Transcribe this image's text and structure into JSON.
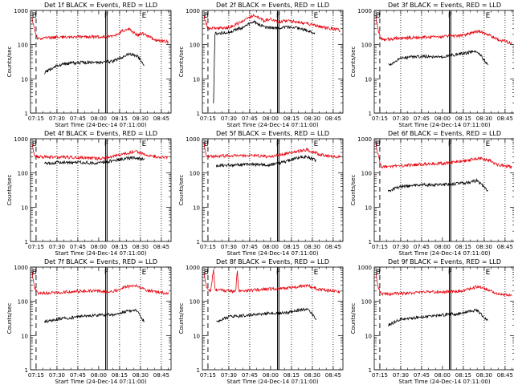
{
  "y_axis_label": "Counts/sec",
  "x_axis_label": "Start Time (24-Dec-14 07:11:00)",
  "x_ticks": [
    "07:15",
    "07:30",
    "07:45",
    "08:00",
    "08:15",
    "08:30",
    "08:45"
  ],
  "y_ticks": [
    "1",
    "10",
    "100",
    "1000"
  ],
  "markers": [
    "B",
    "F",
    "E"
  ],
  "colors": {
    "events": "#000000",
    "lld": "#e8000b"
  },
  "chart_data": [
    {
      "type": "line",
      "title": "Det 1f BLACK = Events, RED = LLD",
      "ylim": [
        1,
        1000
      ],
      "y_scale": "log",
      "x_range_minutes": [
        "07:11",
        "08:52"
      ],
      "series": [
        {
          "color": "#e8000b",
          "points": [
            [
              "07:12",
              650
            ],
            [
              "07:14",
              250
            ],
            [
              "07:16",
              150
            ],
            [
              "07:30",
              165
            ],
            [
              "07:45",
              170
            ],
            [
              "08:00",
              170
            ],
            [
              "08:10",
              175
            ],
            [
              "08:18",
              260
            ],
            [
              "08:22",
              280
            ],
            [
              "08:28",
              190
            ],
            [
              "08:32",
              210
            ],
            [
              "08:40",
              140
            ],
            [
              "08:50",
              120
            ]
          ]
        },
        {
          "color": "#000000",
          "points": [
            [
              "07:21",
              15
            ],
            [
              "07:30",
              25
            ],
            [
              "07:45",
              30
            ],
            [
              "08:00",
              30
            ],
            [
              "08:10",
              33
            ],
            [
              "08:18",
              45
            ],
            [
              "08:22",
              55
            ],
            [
              "08:28",
              45
            ],
            [
              "08:33",
              25
            ]
          ]
        }
      ]
    },
    {
      "type": "line",
      "title": "Det 2f BLACK = Events, RED = LLD",
      "ylim": [
        1,
        1000
      ],
      "y_scale": "log",
      "x_range_minutes": [
        "07:11",
        "08:52"
      ],
      "series": [
        {
          "color": "#e8000b",
          "points": [
            [
              "07:12",
              700
            ],
            [
              "07:15",
              300
            ],
            [
              "07:30",
              320
            ],
            [
              "07:40",
              480
            ],
            [
              "07:48",
              750
            ],
            [
              "07:55",
              500
            ],
            [
              "08:00",
              560
            ],
            [
              "08:05",
              450
            ],
            [
              "08:10",
              500
            ],
            [
              "08:20",
              460
            ],
            [
              "08:30",
              380
            ],
            [
              "08:40",
              310
            ],
            [
              "08:50",
              260
            ]
          ]
        },
        {
          "color": "#000000",
          "points": [
            [
              "07:19",
              2
            ],
            [
              "07:20",
              210
            ],
            [
              "07:30",
              230
            ],
            [
              "07:40",
              320
            ],
            [
              "07:48",
              480
            ],
            [
              "07:55",
              330
            ],
            [
              "08:05",
              300
            ],
            [
              "08:15",
              330
            ],
            [
              "08:25",
              270
            ],
            [
              "08:32",
              220
            ]
          ]
        }
      ]
    },
    {
      "type": "line",
      "title": "Det 3f BLACK = Events, RED = LLD",
      "ylim": [
        1,
        1000
      ],
      "y_scale": "log",
      "x_range_minutes": [
        "07:11",
        "08:52"
      ],
      "series": [
        {
          "color": "#e8000b",
          "points": [
            [
              "07:12",
              700
            ],
            [
              "07:14",
              250
            ],
            [
              "07:16",
              140
            ],
            [
              "07:30",
              155
            ],
            [
              "07:45",
              165
            ],
            [
              "08:00",
              170
            ],
            [
              "08:15",
              185
            ],
            [
              "08:25",
              250
            ],
            [
              "08:33",
              200
            ],
            [
              "08:40",
              140
            ],
            [
              "08:50",
              110
            ]
          ]
        },
        {
          "color": "#000000",
          "points": [
            [
              "07:21",
              25
            ],
            [
              "07:30",
              40
            ],
            [
              "07:45",
              45
            ],
            [
              "08:00",
              45
            ],
            [
              "08:15",
              55
            ],
            [
              "08:25",
              65
            ],
            [
              "08:33",
              25
            ]
          ]
        }
      ]
    },
    {
      "type": "line",
      "title": "Det 4f BLACK = Events, RED = LLD",
      "ylim": [
        1,
        1000
      ],
      "y_scale": "log",
      "x_range_minutes": [
        "07:11",
        "08:52"
      ],
      "series": [
        {
          "color": "#e8000b",
          "points": [
            [
              "07:12",
              700
            ],
            [
              "07:14",
              300
            ],
            [
              "07:30",
              290
            ],
            [
              "07:45",
              285
            ],
            [
              "08:00",
              260
            ],
            [
              "08:10",
              300
            ],
            [
              "08:20",
              380
            ],
            [
              "08:27",
              420
            ],
            [
              "08:35",
              330
            ],
            [
              "08:45",
              290
            ],
            [
              "08:50",
              280
            ]
          ]
        },
        {
          "color": "#000000",
          "points": [
            [
              "07:21",
              190
            ],
            [
              "07:30",
              200
            ],
            [
              "07:45",
              205
            ],
            [
              "08:00",
              195
            ],
            [
              "08:10",
              230
            ],
            [
              "08:20",
              270
            ],
            [
              "08:27",
              280
            ],
            [
              "08:33",
              240
            ]
          ]
        }
      ]
    },
    {
      "type": "line",
      "title": "Det 5f BLACK = Events, RED = LLD",
      "ylim": [
        1,
        1000
      ],
      "y_scale": "log",
      "x_range_minutes": [
        "07:11",
        "08:52"
      ],
      "series": [
        {
          "color": "#e8000b",
          "points": [
            [
              "07:12",
              800
            ],
            [
              "07:14",
              300
            ],
            [
              "07:30",
              320
            ],
            [
              "07:45",
              330
            ],
            [
              "08:00",
              300
            ],
            [
              "08:10",
              360
            ],
            [
              "08:20",
              430
            ],
            [
              "08:26",
              480
            ],
            [
              "08:35",
              350
            ],
            [
              "08:45",
              300
            ],
            [
              "08:50",
              290
            ]
          ]
        },
        {
          "color": "#000000",
          "points": [
            [
              "07:21",
              160
            ],
            [
              "07:30",
              170
            ],
            [
              "07:45",
              180
            ],
            [
              "08:00",
              170
            ],
            [
              "08:10",
              210
            ],
            [
              "08:20",
              280
            ],
            [
              "08:26",
              300
            ],
            [
              "08:33",
              230
            ]
          ]
        }
      ]
    },
    {
      "type": "line",
      "title": "Det 6f BLACK = Events, RED = LLD",
      "ylim": [
        1,
        1000
      ],
      "y_scale": "log",
      "x_range_minutes": [
        "07:11",
        "08:52"
      ],
      "series": [
        {
          "color": "#e8000b",
          "points": [
            [
              "07:12",
              800
            ],
            [
              "07:14",
              300
            ],
            [
              "07:16",
              150
            ],
            [
              "07:30",
              160
            ],
            [
              "07:45",
              180
            ],
            [
              "08:00",
              190
            ],
            [
              "08:15",
              220
            ],
            [
              "08:25",
              270
            ],
            [
              "08:33",
              240
            ],
            [
              "08:40",
              170
            ],
            [
              "08:50",
              150
            ]
          ]
        },
        {
          "color": "#000000",
          "points": [
            [
              "07:21",
              30
            ],
            [
              "07:30",
              40
            ],
            [
              "07:45",
              45
            ],
            [
              "08:00",
              45
            ],
            [
              "08:15",
              50
            ],
            [
              "08:25",
              60
            ],
            [
              "08:33",
              30
            ]
          ]
        }
      ]
    },
    {
      "type": "line",
      "title": "Det 7f BLACK = Events, RED = LLD",
      "ylim": [
        1,
        1000
      ],
      "y_scale": "log",
      "x_range_minutes": [
        "07:11",
        "08:52"
      ],
      "series": [
        {
          "color": "#e8000b",
          "points": [
            [
              "07:12",
              700
            ],
            [
              "07:14",
              250
            ],
            [
              "07:16",
              170
            ],
            [
              "07:30",
              180
            ],
            [
              "07:45",
              200
            ],
            [
              "08:00",
              200
            ],
            [
              "08:10",
              190
            ],
            [
              "08:20",
              270
            ],
            [
              "08:27",
              280
            ],
            [
              "08:35",
              210
            ],
            [
              "08:45",
              180
            ],
            [
              "08:50",
              170
            ]
          ]
        },
        {
          "color": "#000000",
          "points": [
            [
              "07:21",
              25
            ],
            [
              "07:30",
              30
            ],
            [
              "07:45",
              35
            ],
            [
              "08:00",
              40
            ],
            [
              "08:10",
              40
            ],
            [
              "08:20",
              50
            ],
            [
              "08:27",
              55
            ],
            [
              "08:33",
              25
            ]
          ]
        }
      ]
    },
    {
      "type": "line",
      "title": "Det 8f BLACK = Events, RED = LLD",
      "ylim": [
        1,
        1000
      ],
      "y_scale": "log",
      "x_range_minutes": [
        "07:11",
        "08:52"
      ],
      "series": [
        {
          "color": "#e8000b",
          "points": [
            [
              "07:12",
              700
            ],
            [
              "07:14",
              250
            ],
            [
              "07:17",
              200
            ],
            [
              "07:19",
              900
            ],
            [
              "07:20",
              220
            ],
            [
              "07:30",
              200
            ],
            [
              "07:35",
              190
            ],
            [
              "07:36",
              900
            ],
            [
              "07:37",
              200
            ],
            [
              "07:45",
              210
            ],
            [
              "08:00",
              230
            ],
            [
              "08:10",
              240
            ],
            [
              "08:20",
              270
            ],
            [
              "08:27",
              290
            ],
            [
              "08:35",
              220
            ],
            [
              "08:50",
              190
            ]
          ]
        },
        {
          "color": "#000000",
          "points": [
            [
              "07:21",
              25
            ],
            [
              "07:30",
              35
            ],
            [
              "07:45",
              40
            ],
            [
              "08:00",
              45
            ],
            [
              "08:10",
              45
            ],
            [
              "08:20",
              55
            ],
            [
              "08:27",
              60
            ],
            [
              "08:33",
              30
            ]
          ]
        }
      ]
    },
    {
      "type": "line",
      "title": "Det 9f BLACK = Events, RED = LLD",
      "ylim": [
        1,
        1000
      ],
      "y_scale": "log",
      "x_range_minutes": [
        "07:11",
        "08:52"
      ],
      "series": [
        {
          "color": "#e8000b",
          "points": [
            [
              "07:12",
              700
            ],
            [
              "07:14",
              250
            ],
            [
              "07:16",
              160
            ],
            [
              "07:30",
              170
            ],
            [
              "07:45",
              185
            ],
            [
              "08:00",
              190
            ],
            [
              "08:15",
              200
            ],
            [
              "08:25",
              270
            ],
            [
              "08:33",
              210
            ],
            [
              "08:40",
              170
            ],
            [
              "08:50",
              150
            ]
          ]
        },
        {
          "color": "#000000",
          "points": [
            [
              "07:21",
              20
            ],
            [
              "07:30",
              30
            ],
            [
              "07:45",
              35
            ],
            [
              "08:00",
              40
            ],
            [
              "08:15",
              45
            ],
            [
              "08:25",
              55
            ],
            [
              "08:33",
              25
            ]
          ]
        }
      ]
    }
  ]
}
